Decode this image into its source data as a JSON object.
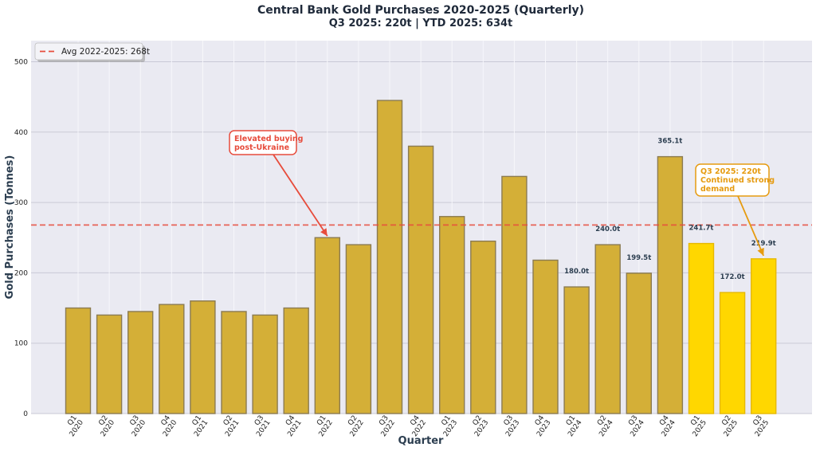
{
  "chart_data": {
    "type": "bar",
    "title": "Central Bank Gold Purchases 2020-2025 (Quarterly)",
    "subtitle": "Q3 2025: 220t | YTD 2025: 634t",
    "xlabel": "Quarter",
    "ylabel": "Gold Purchases (Tonnes)",
    "ylim": [
      0,
      530
    ],
    "yticks": [
      0,
      100,
      200,
      300,
      400,
      500
    ],
    "grid": true,
    "categories": [
      [
        "Q1",
        "2020"
      ],
      [
        "Q2",
        "2020"
      ],
      [
        "Q3",
        "2020"
      ],
      [
        "Q4",
        "2020"
      ],
      [
        "Q1",
        "2021"
      ],
      [
        "Q2",
        "2021"
      ],
      [
        "Q3",
        "2021"
      ],
      [
        "Q4",
        "2021"
      ],
      [
        "Q1",
        "2022"
      ],
      [
        "Q2",
        "2022"
      ],
      [
        "Q3",
        "2022"
      ],
      [
        "Q4",
        "2022"
      ],
      [
        "Q1",
        "2023"
      ],
      [
        "Q2",
        "2023"
      ],
      [
        "Q3",
        "2023"
      ],
      [
        "Q4",
        "2023"
      ],
      [
        "Q1",
        "2024"
      ],
      [
        "Q2",
        "2024"
      ],
      [
        "Q3",
        "2024"
      ],
      [
        "Q4",
        "2024"
      ],
      [
        "Q1",
        "2025"
      ],
      [
        "Q2",
        "2025"
      ],
      [
        "Q3",
        "2025"
      ]
    ],
    "values": [
      150,
      140,
      145,
      155,
      160,
      145,
      140,
      150,
      250,
      240,
      445,
      380,
      280,
      245,
      337,
      218,
      180.0,
      240.0,
      199.5,
      365.1,
      241.7,
      172.0,
      219.9
    ],
    "bar_labels": {
      "16": "180.0t",
      "17": "240.0t",
      "18": "199.5t",
      "19": "365.1t",
      "20": "241.7t",
      "21": "172.0t",
      "22": "219.9t"
    },
    "highlight_from_index": 20,
    "colors": {
      "bar": "#d4af37",
      "bar_edge": "#8b7b52",
      "highlight": "#ffd700",
      "highlight_edge": "#e6b800",
      "avg_line": "#e74c3c",
      "plot_bg": "#eaeaf2",
      "annotation_red": "#e74c3c",
      "annotation_orange": "#e69b10"
    },
    "average_line": {
      "value": 268,
      "label": "Avg 2022-2025: 268t"
    },
    "legend_position": "top-left",
    "annotations": [
      {
        "lines": [
          "Elevated buying",
          "post-Ukraine"
        ],
        "target_index": 8,
        "target_value": 250,
        "color": "red"
      },
      {
        "lines": [
          "Q3 2025: 220t",
          "Continued strong",
          "demand"
        ],
        "target_index": 22,
        "target_value": 222,
        "color": "orange"
      }
    ]
  }
}
